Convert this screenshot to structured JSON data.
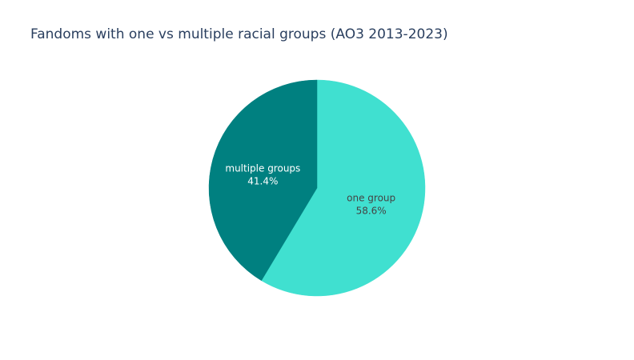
{
  "chart_data": {
    "type": "pie",
    "title": "Fandoms with one vs multiple racial groups (AO3 2013-2023)",
    "slices": [
      {
        "label": "one group",
        "value": 58.6,
        "percent_label": "58.6%",
        "color": "#40e0d0",
        "text_color": "#444444"
      },
      {
        "label": "multiple groups",
        "value": 41.4,
        "percent_label": "41.4%",
        "color": "#008080",
        "text_color": "#ffffff"
      }
    ],
    "direction": "clockwise",
    "start": "top",
    "legend": "none"
  }
}
